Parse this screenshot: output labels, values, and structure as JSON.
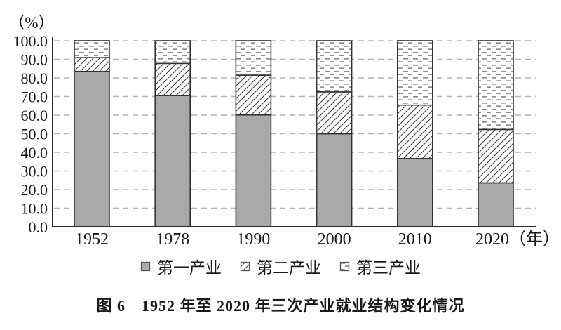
{
  "figure": {
    "caption": "图 6　1952 年至 2020 年三次产业就业结构变化情况"
  },
  "chart_data": {
    "type": "bar",
    "stacked": true,
    "title": "",
    "ylabel": "（%）",
    "xlabel": "",
    "x_unit_suffix": "（年）",
    "categories": [
      "1952",
      "1978",
      "1990",
      "2000",
      "2010",
      "2020"
    ],
    "series": [
      {
        "name": "第一产业",
        "style": "solid-gray",
        "values": [
          83.5,
          70.5,
          60.1,
          50.0,
          36.7,
          23.6
        ]
      },
      {
        "name": "第二产业",
        "style": "diagonal-hatch",
        "values": [
          7.4,
          17.3,
          21.4,
          22.5,
          28.7,
          28.7
        ]
      },
      {
        "name": "第三产业",
        "style": "horizontal-dashes",
        "values": [
          9.1,
          12.2,
          18.5,
          27.5,
          34.6,
          47.7
        ]
      }
    ],
    "ylim": [
      0,
      100
    ],
    "ytick_step": 10,
    "ytick_decimals": 1,
    "grid": "dashed-horizontal",
    "legend_position": "bottom",
    "colors": {
      "bar_gray": "#a9a9a9",
      "bar_outline": "#333333",
      "hatch_line": "#444444",
      "dash_mark": "#8f8f8f",
      "axis": "#2b2b2b",
      "gridline": "#b3b3b3",
      "text": "#1a1a1a"
    }
  }
}
